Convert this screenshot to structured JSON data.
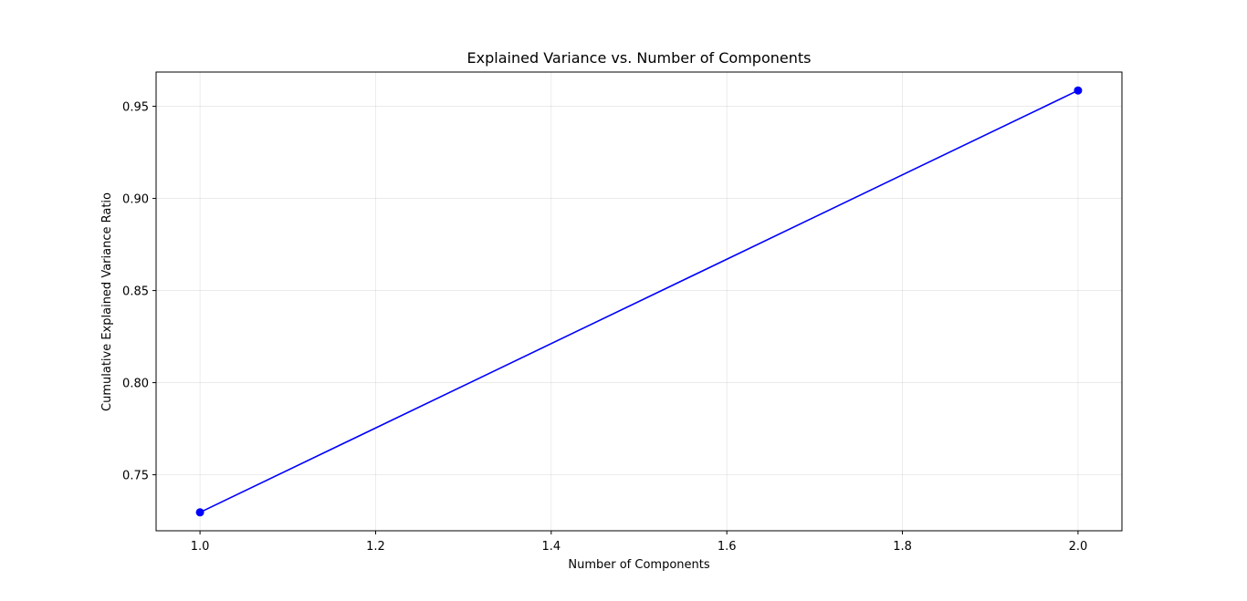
{
  "chart_data": {
    "type": "line",
    "title": "Explained Variance vs. Number of Components",
    "xlabel": "Number of Components",
    "ylabel": "Cumulative Explained Variance Ratio",
    "xlim": [
      0.95,
      2.05
    ],
    "ylim": [
      0.7196,
      0.9686
    ],
    "xticks": [
      1.0,
      1.2,
      1.4,
      1.6,
      1.8,
      2.0
    ],
    "xtick_labels": [
      "1.0",
      "1.2",
      "1.4",
      "1.6",
      "1.8",
      "2.0"
    ],
    "yticks": [
      0.75,
      0.8,
      0.85,
      0.9,
      0.95
    ],
    "ytick_labels": [
      "0.75",
      "0.80",
      "0.85",
      "0.90",
      "0.95"
    ],
    "grid": true,
    "legend": "none",
    "series": [
      {
        "x": [
          1,
          2
        ],
        "y": [
          0.7296,
          0.9586
        ],
        "color": "#0000ff",
        "marker": "circle"
      }
    ]
  }
}
